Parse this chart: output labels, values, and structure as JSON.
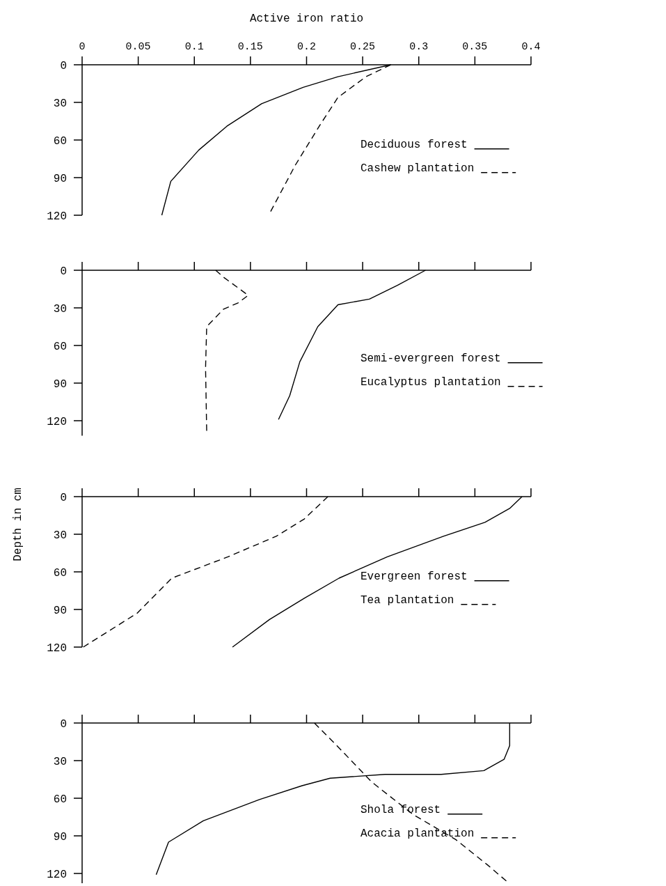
{
  "chart_data": [
    {
      "type": "line",
      "xlabel": "Active iron ratio",
      "xlim": [
        0,
        0.4
      ],
      "xticks": [
        0,
        0.05,
        0.1,
        0.15,
        0.2,
        0.25,
        0.3,
        0.35,
        0.4
      ],
      "ylim": [
        120,
        0
      ],
      "yticks": [
        0,
        30,
        60,
        90,
        120
      ],
      "legend": "right",
      "series": [
        {
          "name": "Deciduous forest",
          "color": "#000000",
          "line_style": "solid",
          "x": [
            0.275,
            0.228,
            0.197,
            0.16,
            0.129,
            0.104,
            0.079,
            0.071
          ],
          "values": [
            0,
            9.5,
            18,
            31,
            49,
            68,
            93,
            120
          ]
        },
        {
          "name": "Cashew plantation",
          "color": "#000000",
          "line_style": "dashed",
          "x": [
            0.275,
            0.253,
            0.228,
            0.212,
            0.19,
            0.168
          ],
          "values": [
            0,
            9.5,
            26,
            48,
            80,
            117
          ]
        }
      ]
    },
    {
      "type": "line",
      "xlim": [
        0,
        0.4
      ],
      "xticks": [
        {
          "value": 0,
          "label": null
        },
        {
          "value": 0.05,
          "label": null
        },
        {
          "value": 0.1,
          "label": null
        },
        {
          "value": 0.15,
          "label": null
        },
        {
          "value": 0.2,
          "label": null
        },
        {
          "value": 0.25,
          "label": null
        },
        {
          "value": 0.3,
          "label": null
        },
        {
          "value": 0.35,
          "label": null
        },
        {
          "value": 0.4,
          "label": null
        }
      ],
      "ylim": [
        132,
        0
      ],
      "yticks": [
        0,
        30,
        60,
        90,
        120
      ],
      "tick_labels": "y",
      "legend": "right",
      "series": [
        {
          "name": "Semi-evergreen forest",
          "color": "#000000",
          "line_style": "solid",
          "x": [
            0.306,
            0.281,
            0.256,
            0.228,
            0.21,
            0.194,
            0.185,
            0.175
          ],
          "values": [
            0,
            12,
            23,
            27.5,
            45,
            73,
            100,
            119
          ]
        },
        {
          "name": "Eucalyptus plantation",
          "color": "#000000",
          "line_style": "dashed",
          "x": [
            0.119,
            0.126,
            0.148,
            0.139,
            0.126,
            0.111,
            0.11,
            0.111
          ],
          "values": [
            0,
            5.5,
            20,
            26,
            31,
            45,
            78,
            128
          ]
        }
      ]
    },
    {
      "type": "line",
      "ylabel": "Depth in cm",
      "xlim": [
        0,
        0.4
      ],
      "xticks": [
        {
          "value": 0,
          "label": null
        },
        {
          "value": 0.05,
          "label": null
        },
        {
          "value": 0.1,
          "label": null
        },
        {
          "value": 0.15,
          "label": null
        },
        {
          "value": 0.2,
          "label": null
        },
        {
          "value": 0.25,
          "label": null
        },
        {
          "value": 0.3,
          "label": null
        },
        {
          "value": 0.35,
          "label": null
        },
        {
          "value": 0.4,
          "label": null
        }
      ],
      "ylim": [
        120,
        0
      ],
      "yticks": [
        0,
        30,
        60,
        90,
        120
      ],
      "tick_labels": "y",
      "legend": "right",
      "series": [
        {
          "name": "Evergreen forest",
          "color": "#000000",
          "line_style": "solid",
          "x": [
            0.392,
            0.381,
            0.359,
            0.322,
            0.272,
            0.229,
            0.198,
            0.167,
            0.134
          ],
          "values": [
            0,
            9.4,
            20.5,
            31.6,
            48,
            65,
            81,
            98,
            120
          ]
        },
        {
          "name": "Tea plantation",
          "color": "#000000",
          "line_style": "dashed",
          "x": [
            0.219,
            0.198,
            0.173,
            0.13,
            0.08,
            0.049,
            0.001
          ],
          "values": [
            0,
            17.8,
            31.6,
            48,
            65,
            93,
            120
          ]
        }
      ]
    },
    {
      "type": "line",
      "xlim": [
        0,
        0.4
      ],
      "xticks": [
        {
          "value": 0,
          "label": null
        },
        {
          "value": 0.05,
          "label": null
        },
        {
          "value": 0.1,
          "label": null
        },
        {
          "value": 0.15,
          "label": null
        },
        {
          "value": 0.2,
          "label": null
        },
        {
          "value": 0.25,
          "label": null
        },
        {
          "value": 0.3,
          "label": null
        },
        {
          "value": 0.35,
          "label": null
        },
        {
          "value": 0.4,
          "label": null
        }
      ],
      "ylim": [
        130,
        0
      ],
      "yticks": [
        0,
        30,
        60,
        90,
        120
      ],
      "tick_labels": "y",
      "legend": "right",
      "series": [
        {
          "name": "Shola forest",
          "color": "#000000",
          "line_style": "solid",
          "x": [
            0.381,
            0.381,
            0.376,
            0.358,
            0.32,
            0.27,
            0.221,
            0.196,
            0.158,
            0.108,
            0.077,
            0.066
          ],
          "values": [
            0,
            18,
            29,
            38,
            41,
            41,
            44,
            50,
            61,
            78,
            95,
            121
          ]
        },
        {
          "name": "Acacia plantation",
          "color": "#000000",
          "line_style": "dashed",
          "x": [
            0.207,
            0.227,
            0.258,
            0.295,
            0.333,
            0.361,
            0.378
          ],
          "values": [
            0,
            18,
            47,
            73,
            93,
            113,
            126
          ]
        }
      ]
    }
  ]
}
